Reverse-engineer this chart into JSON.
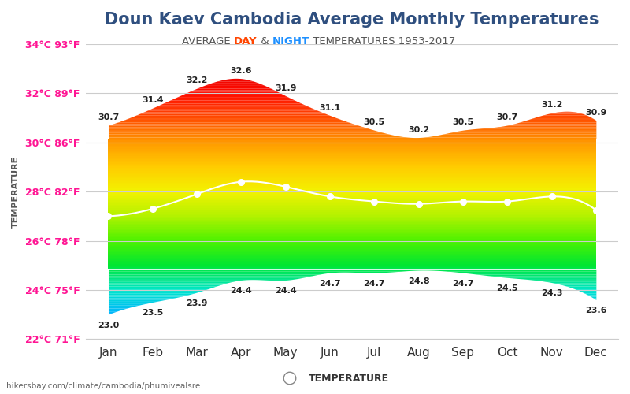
{
  "title": "Doun Kaev Cambodia Average Monthly Temperatures",
  "subtitle_parts": [
    "AVERAGE ",
    "DAY",
    " & ",
    "NIGHT",
    " TEMPERATURES 1953-2017"
  ],
  "subtitle_colors": [
    "#555555",
    "#FF4500",
    "#555555",
    "#1E90FF",
    "#555555"
  ],
  "months": [
    "Jan",
    "Feb",
    "Mar",
    "Apr",
    "May",
    "Jun",
    "Jul",
    "Aug",
    "Sep",
    "Oct",
    "Nov",
    "Dec"
  ],
  "day_temps": [
    30.7,
    31.4,
    32.2,
    32.6,
    31.9,
    31.1,
    30.5,
    30.2,
    30.5,
    30.7,
    31.2,
    30.9
  ],
  "night_temps": [
    23.0,
    23.5,
    23.9,
    24.4,
    24.4,
    24.7,
    24.7,
    24.8,
    24.7,
    24.5,
    24.3,
    23.6
  ],
  "mid_temps": [
    27.0,
    27.3,
    27.9,
    28.4,
    28.2,
    27.8,
    27.6,
    27.5,
    27.6,
    27.6,
    27.8,
    27.25
  ],
  "ylim": [
    22,
    34
  ],
  "yticks_c": [
    22,
    24,
    26,
    28,
    30,
    32,
    34
  ],
  "yticks_f": [
    71,
    75,
    78,
    82,
    86,
    89,
    93
  ],
  "background_color": "#ffffff",
  "plot_bg": "#ffffff",
  "grid_color": "#cccccc",
  "title_color": "#2F4F7F",
  "ylabel_color": "#555555",
  "tick_label_color": "#FF1493",
  "watermark": "hikersbay.com/climate/cambodia/phumivealsre",
  "legend_text": "TEMPERATURE"
}
